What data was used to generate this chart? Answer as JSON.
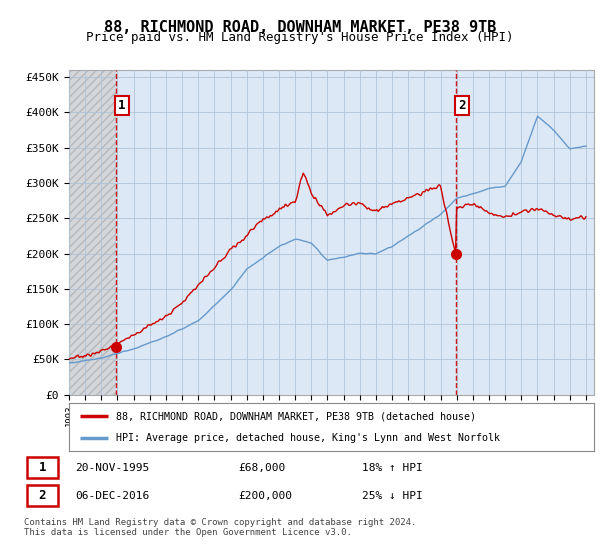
{
  "title": "88, RICHMOND ROAD, DOWNHAM MARKET, PE38 9TB",
  "subtitle": "Price paid vs. HM Land Registry's House Price Index (HPI)",
  "ylabel_ticks": [
    "£0",
    "£50K",
    "£100K",
    "£150K",
    "£200K",
    "£250K",
    "£300K",
    "£350K",
    "£400K",
    "£450K"
  ],
  "ytick_values": [
    0,
    50000,
    100000,
    150000,
    200000,
    250000,
    300000,
    350000,
    400000,
    450000
  ],
  "ylim": [
    0,
    460000
  ],
  "xlim_start": 1993.0,
  "xlim_end": 2025.5,
  "xtick_years": [
    1993,
    1994,
    1995,
    1996,
    1997,
    1998,
    1999,
    2000,
    2001,
    2002,
    2003,
    2004,
    2005,
    2006,
    2007,
    2008,
    2009,
    2010,
    2011,
    2012,
    2013,
    2014,
    2015,
    2016,
    2017,
    2018,
    2019,
    2020,
    2021,
    2022,
    2023,
    2024,
    2025
  ],
  "sale1_x": 1995.9,
  "sale1_y": 68000,
  "sale1_label": "1",
  "sale1_date": "20-NOV-1995",
  "sale1_price": "£68,000",
  "sale1_hpi": "18% ↑ HPI",
  "sale2_x": 2016.93,
  "sale2_y": 200000,
  "sale2_label": "2",
  "sale2_date": "06-DEC-2016",
  "sale2_price": "£200,000",
  "sale2_hpi": "25% ↓ HPI",
  "legend_line1": "88, RICHMOND ROAD, DOWNHAM MARKET, PE38 9TB (detached house)",
  "legend_line2": "HPI: Average price, detached house, King's Lynn and West Norfolk",
  "footnote": "Contains HM Land Registry data © Crown copyright and database right 2024.\nThis data is licensed under the Open Government Licence v3.0.",
  "line_color_red": "#cc0000",
  "line_color_blue": "#6699cc",
  "vline_color": "#cc0000",
  "bg_color": "#ffffff",
  "hatch_bg_color": "#e8e8e8",
  "chart_bg_color": "#dce8f5",
  "grid_color": "#b0c4d8",
  "title_fontsize": 11,
  "subtitle_fontsize": 9,
  "tick_fontsize": 8,
  "legend_fontsize": 8,
  "annotation_fontsize": 8
}
